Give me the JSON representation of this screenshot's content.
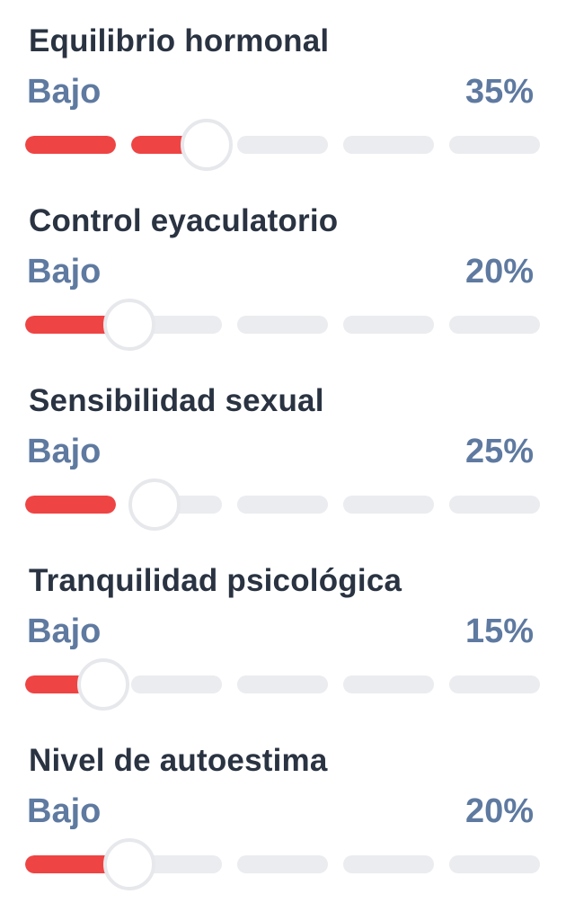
{
  "metrics": [
    {
      "title": "Equilibrio hormonal",
      "level": "Bajo",
      "percent_label": "35%",
      "value": 0.35
    },
    {
      "title": "Control eyaculatorio",
      "level": "Bajo",
      "percent_label": "20%",
      "value": 0.2
    },
    {
      "title": "Sensibilidad sexual",
      "level": "Bajo",
      "percent_label": "25%",
      "value": 0.25
    },
    {
      "title": "Tranquilidad psicológica",
      "level": "Bajo",
      "percent_label": "15%",
      "value": 0.15
    },
    {
      "title": "Nivel de autoestima",
      "level": "Bajo",
      "percent_label": "20%",
      "value": 0.2
    }
  ],
  "colors": {
    "fill": "#ef4444",
    "track": "#ebecf0",
    "title": "#2a3342",
    "accent_text": "#5f7aa0"
  }
}
